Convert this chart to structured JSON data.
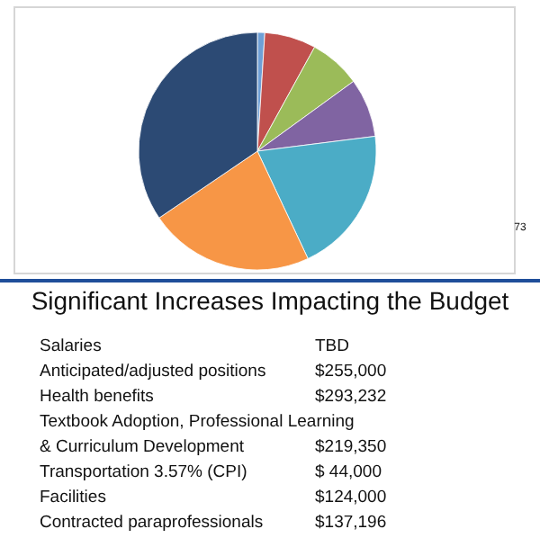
{
  "chart_data": {
    "type": "pie",
    "categories": [
      null,
      null,
      null,
      null,
      null,
      null,
      null
    ],
    "values": [
      1,
      7,
      7,
      8,
      20,
      22.5,
      34.5
    ],
    "colors": [
      "#6fa0d6",
      "#c0504d",
      "#9bbb59",
      "#8064a2",
      "#4bacc6",
      "#f79646",
      "#2c4a74"
    ],
    "annotations": [
      "73",
      "Significant Increases Impacting the Budget",
      "Salaries",
      "TBD",
      "Anticipated/adjusted positions",
      "$255,000",
      "Health benefits",
      "$293,232",
      "Textbook Adoption, Professional Learning",
      "& Curriculum Development",
      "$219,350",
      "Transportation 3.57% (CPI)",
      "$ 44,000",
      "Facilities",
      "$124,000",
      "Contracted paraprofessionals",
      "$137,196"
    ]
  }
}
